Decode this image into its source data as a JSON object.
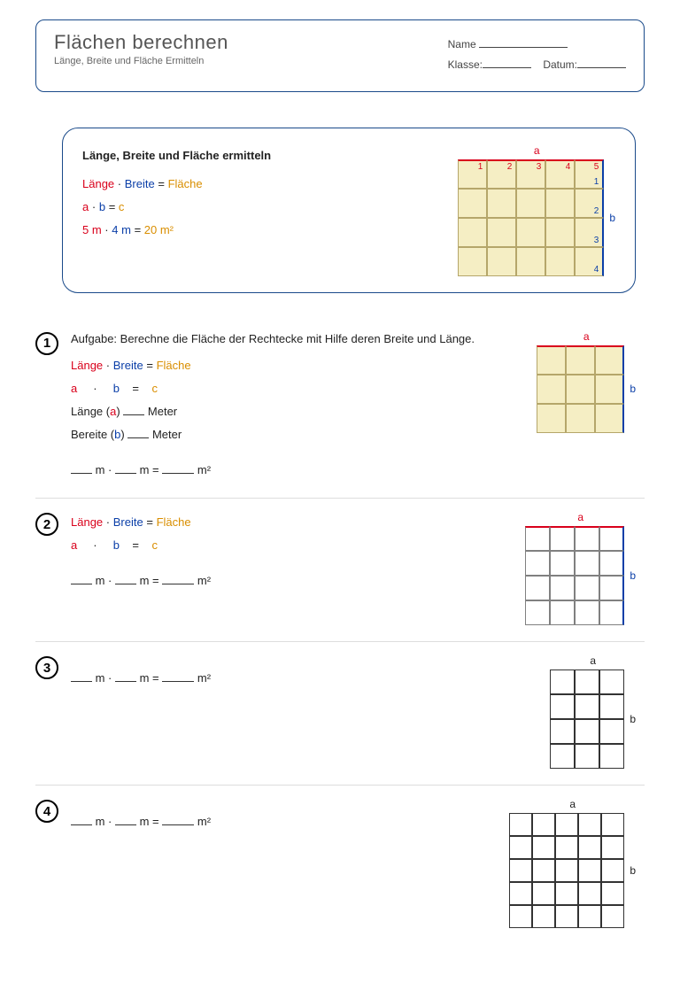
{
  "header": {
    "title": "Flächen berechnen",
    "subtitle": "Länge, Breite und Fläche Ermitteln",
    "name_label": "Name",
    "class_label": "Klasse:",
    "date_label": "Datum:"
  },
  "colors": {
    "red": "#d9001b",
    "blue": "#0b3fa8",
    "orange": "#d98e00",
    "border_blue": "#1a4a8a",
    "grid_tan_fill": "#f5eec4",
    "grid_tan_border": "#b5a66a",
    "grid_grey_border": "#808080",
    "grid_black_border": "#333333"
  },
  "info_box": {
    "heading": "Länge, Breite und Fläche ermitteln",
    "formula_words": {
      "a": "Länge",
      "dot": "·",
      "b": "Breite",
      "eq": "=",
      "c": "Fläche"
    },
    "formula_vars": {
      "a": "a",
      "dot": "·",
      "b": "b",
      "eq": "=",
      "c": "c"
    },
    "formula_vals": {
      "a": "5 m",
      "dot": "·",
      "b": "4 m",
      "eq": "=",
      "c": "20 m²"
    },
    "grid": {
      "cols": 5,
      "rows": 4,
      "cell": 33,
      "fill": "#f5eec4",
      "border": "#b5a66a",
      "top_edge": "#d9001b",
      "right_edge": "#0b3fa8",
      "top_label": "a",
      "side_label": "b",
      "col_numbers": [
        "1",
        "2",
        "3",
        "4",
        "5"
      ],
      "row_numbers": [
        "1",
        "2",
        "3",
        "4"
      ]
    }
  },
  "exercises": [
    {
      "num": "1",
      "task": "Aufgabe: Berechne die Fläche der Rechtecke mit Hilfe deren Breite und Länge.",
      "show_formula_words": true,
      "show_formula_vars": true,
      "show_length_width_lines": true,
      "length_label": "Länge",
      "length_var": "a",
      "width_label": "Bereite",
      "width_var": "b",
      "unit": "Meter",
      "answer_template": true,
      "grid": {
        "cols": 3,
        "rows": 3,
        "cell": 33,
        "fill": "#f5eec4",
        "border": "#b5a66a",
        "top_edge": "#d9001b",
        "right_edge": "#0b3fa8",
        "top_label": "a",
        "side_label": "b"
      }
    },
    {
      "num": "2",
      "show_formula_words": true,
      "show_formula_vars": true,
      "answer_template": true,
      "grid": {
        "cols": 4,
        "rows": 4,
        "cell": 28,
        "fill": "#ffffff",
        "border": "#808080",
        "top_edge": "#d9001b",
        "right_edge": "#0b3fa8",
        "top_label": "a",
        "side_label": "b"
      }
    },
    {
      "num": "3",
      "answer_template": true,
      "grid": {
        "cols": 3,
        "rows": 4,
        "cell": 28,
        "fill": "#ffffff",
        "border": "#333333",
        "top_label": "a",
        "side_label": "b"
      }
    },
    {
      "num": "4",
      "answer_template": true,
      "grid": {
        "cols": 5,
        "rows": 5,
        "cell": 26,
        "fill": "#ffffff",
        "border": "#333333",
        "top_label": "a",
        "side_label": "b"
      }
    }
  ],
  "answer_line": {
    "m": "m",
    "dot": "·",
    "eq": "=",
    "m2": "m²"
  }
}
